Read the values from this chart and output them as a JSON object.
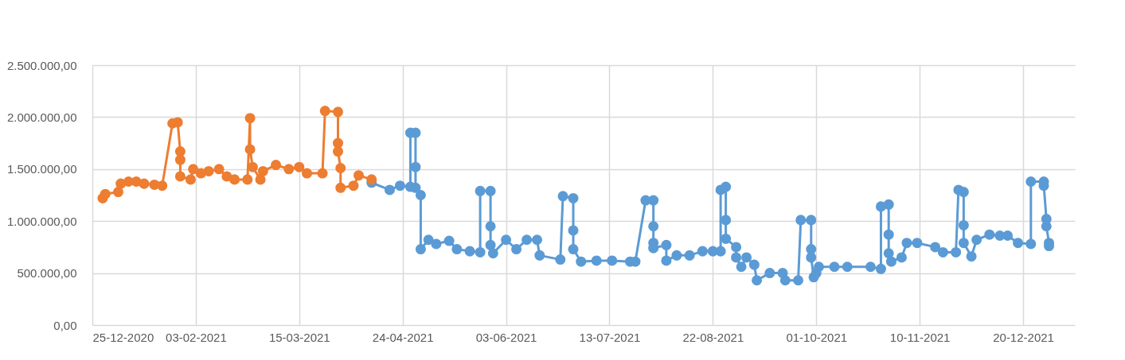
{
  "chart_data": {
    "type": "line",
    "marker": "circle",
    "line_style": "solid",
    "grid": true,
    "xlim": [
      "2020-12-25",
      "2022-01-09"
    ],
    "xticks": [
      {
        "value": "2020-12-25",
        "label": "25-12-2020"
      },
      {
        "value": "2021-02-03",
        "label": "03-02-2021"
      },
      {
        "value": "2021-03-15",
        "label": "15-03-2021"
      },
      {
        "value": "2021-04-24",
        "label": "24-04-2021"
      },
      {
        "value": "2021-06-03",
        "label": "03-06-2021"
      },
      {
        "value": "2021-07-13",
        "label": "13-07-2021"
      },
      {
        "value": "2021-08-22",
        "label": "22-08-2021"
      },
      {
        "value": "2021-10-01",
        "label": "01-10-2021"
      },
      {
        "value": "2021-11-10",
        "label": "10-11-2021"
      },
      {
        "value": "2021-12-20",
        "label": "20-12-2021"
      }
    ],
    "ylim": [
      0,
      2500000
    ],
    "yticks": [
      {
        "value": 0,
        "label": "0,00"
      },
      {
        "value": 500000,
        "label": "500.000,00"
      },
      {
        "value": 1000000,
        "label": "1.000.000,00"
      },
      {
        "value": 1500000,
        "label": "1.500.000,00"
      },
      {
        "value": 2000000,
        "label": "2.000.000,00"
      },
      {
        "value": 2500000,
        "label": "2.500.000,00"
      }
    ],
    "series": [
      {
        "color": "#ed7d31",
        "x": [
          "2020-12-29",
          "2020-12-30",
          "2021-01-04",
          "2021-01-05",
          "2021-01-08",
          "2021-01-11",
          "2021-01-14",
          "2021-01-18",
          "2021-01-21",
          "2021-01-25",
          "2021-01-27",
          "2021-01-28",
          "2021-01-28",
          "2021-01-28",
          "2021-02-01",
          "2021-02-02",
          "2021-02-05",
          "2021-02-08",
          "2021-02-12",
          "2021-02-15",
          "2021-02-18",
          "2021-02-23",
          "2021-02-24",
          "2021-02-24",
          "2021-02-25",
          "2021-02-28",
          "2021-03-01",
          "2021-03-06",
          "2021-03-11",
          "2021-03-15",
          "2021-03-18",
          "2021-03-24",
          "2021-03-25",
          "2021-03-30",
          "2021-03-30",
          "2021-03-30",
          "2021-03-31",
          "2021-03-31",
          "2021-04-05",
          "2021-04-07",
          "2021-04-12"
        ],
        "values": [
          1220000,
          1260000,
          1280000,
          1360000,
          1380000,
          1380000,
          1360000,
          1350000,
          1340000,
          1940000,
          1950000,
          1670000,
          1590000,
          1430000,
          1400000,
          1500000,
          1460000,
          1480000,
          1500000,
          1430000,
          1400000,
          1400000,
          1990000,
          1690000,
          1520000,
          1400000,
          1480000,
          1540000,
          1500000,
          1520000,
          1460000,
          1460000,
          2060000,
          2050000,
          1750000,
          1670000,
          1510000,
          1320000,
          1340000,
          1440000,
          1400000
        ]
      },
      {
        "color": "#5b9bd5",
        "x": [
          "2021-04-12",
          "2021-04-19",
          "2021-04-23",
          "2021-04-27",
          "2021-04-27",
          "2021-04-29",
          "2021-04-29",
          "2021-04-29",
          "2021-05-01",
          "2021-05-01",
          "2021-05-04",
          "2021-05-07",
          "2021-05-12",
          "2021-05-15",
          "2021-05-20",
          "2021-05-24",
          "2021-05-24",
          "2021-05-28",
          "2021-05-28",
          "2021-05-28",
          "2021-05-29",
          "2021-06-03",
          "2021-06-07",
          "2021-06-11",
          "2021-06-15",
          "2021-06-16",
          "2021-06-24",
          "2021-06-25",
          "2021-06-29",
          "2021-06-29",
          "2021-06-29",
          "2021-07-02",
          "2021-07-08",
          "2021-07-14",
          "2021-07-21",
          "2021-07-23",
          "2021-07-27",
          "2021-07-30",
          "2021-07-30",
          "2021-07-30",
          "2021-07-30",
          "2021-08-04",
          "2021-08-04",
          "2021-08-08",
          "2021-08-13",
          "2021-08-18",
          "2021-08-22",
          "2021-08-25",
          "2021-08-25",
          "2021-08-27",
          "2021-08-27",
          "2021-08-27",
          "2021-08-31",
          "2021-08-31",
          "2021-09-02",
          "2021-09-04",
          "2021-09-07",
          "2021-09-08",
          "2021-09-13",
          "2021-09-18",
          "2021-09-19",
          "2021-09-24",
          "2021-09-25",
          "2021-09-29",
          "2021-09-29",
          "2021-09-29",
          "2021-09-30",
          "2021-10-01",
          "2021-10-02",
          "2021-10-08",
          "2021-10-13",
          "2021-10-22",
          "2021-10-26",
          "2021-10-26",
          "2021-10-29",
          "2021-10-29",
          "2021-10-29",
          "2021-10-30",
          "2021-11-03",
          "2021-11-05",
          "2021-11-09",
          "2021-11-16",
          "2021-11-19",
          "2021-11-24",
          "2021-11-25",
          "2021-11-27",
          "2021-11-27",
          "2021-11-27",
          "2021-11-30",
          "2021-12-02",
          "2021-12-07",
          "2021-12-11",
          "2021-12-14",
          "2021-12-18",
          "2021-12-23",
          "2021-12-23",
          "2021-12-28",
          "2021-12-28",
          "2021-12-29",
          "2021-12-29",
          "2021-12-30",
          "2021-12-30"
        ],
        "values": [
          1370000,
          1300000,
          1340000,
          1330000,
          1850000,
          1850000,
          1520000,
          1320000,
          1250000,
          730000,
          820000,
          780000,
          810000,
          730000,
          710000,
          700000,
          1290000,
          1290000,
          950000,
          770000,
          690000,
          820000,
          730000,
          820000,
          820000,
          670000,
          630000,
          1240000,
          1220000,
          910000,
          730000,
          610000,
          620000,
          620000,
          610000,
          610000,
          1200000,
          1200000,
          950000,
          790000,
          740000,
          770000,
          620000,
          670000,
          670000,
          710000,
          710000,
          710000,
          1300000,
          1330000,
          1010000,
          830000,
          750000,
          650000,
          560000,
          650000,
          580000,
          430000,
          500000,
          500000,
          430000,
          430000,
          1010000,
          1010000,
          730000,
          650000,
          460000,
          500000,
          560000,
          560000,
          560000,
          560000,
          540000,
          1140000,
          1160000,
          870000,
          690000,
          610000,
          650000,
          790000,
          790000,
          750000,
          700000,
          700000,
          1300000,
          1280000,
          960000,
          790000,
          660000,
          820000,
          870000,
          860000,
          860000,
          790000,
          780000,
          1380000,
          1380000,
          1340000,
          1020000,
          950000,
          790000,
          760000
        ]
      }
    ]
  }
}
